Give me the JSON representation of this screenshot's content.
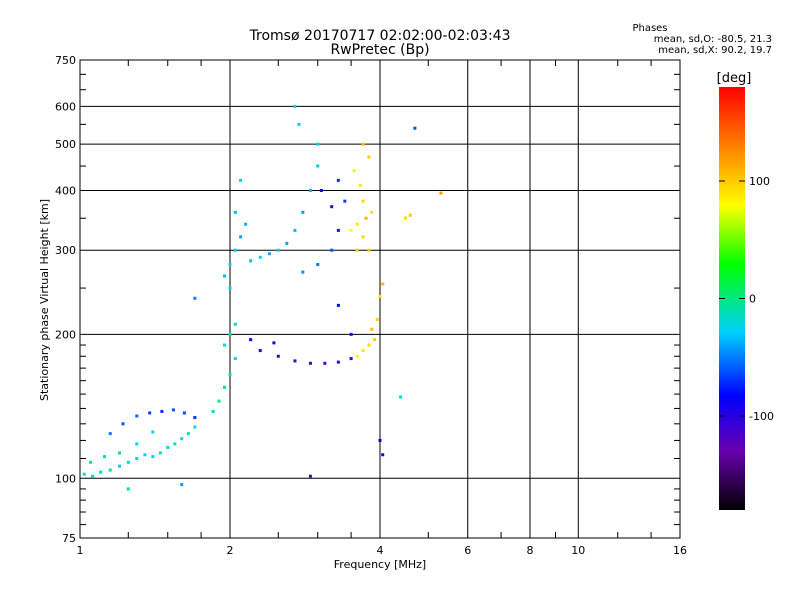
{
  "chart_data": {
    "type": "scatter",
    "title": "Tromsø 20170717 02:02:00-02:03:43",
    "subtitle": "RwPretec (Bp)",
    "xlabel": "Frequency [MHz]",
    "ylabel": "Stationary phase Virtual Height [km]",
    "x_scale": "log",
    "y_scale": "log",
    "xlim": [
      1,
      16
    ],
    "ylim": [
      75,
      750
    ],
    "x_ticks": [
      1,
      2,
      4,
      6,
      8,
      10,
      16
    ],
    "x_tick_labels": [
      "1",
      "2",
      "4",
      "6",
      "8",
      "10",
      "16"
    ],
    "y_ticks": [
      75,
      100,
      200,
      300,
      400,
      500,
      600,
      750
    ],
    "y_tick_labels": [
      "75",
      "100",
      "200",
      "300",
      "400",
      "500",
      "600",
      "750"
    ],
    "grid": true,
    "info": {
      "heading": "Phases",
      "line1": "mean, sd,O: -80.5, 21.3",
      "line2": "mean, sd,X:  90.2, 19.7"
    },
    "colorbar": {
      "label": "[deg]",
      "range": [
        -180,
        180
      ],
      "ticks": [
        100,
        0,
        -100
      ],
      "tick_labels": [
        "100",
        "0",
        "-100"
      ]
    },
    "series": [
      {
        "values": [
          [
            1.02,
            102,
            -40
          ],
          [
            1.06,
            101,
            -35
          ],
          [
            1.1,
            103,
            -38
          ],
          [
            1.15,
            104,
            -30
          ],
          [
            1.2,
            106,
            -45
          ],
          [
            1.25,
            108,
            -40
          ],
          [
            1.3,
            110,
            -35
          ],
          [
            1.35,
            112,
            -50
          ],
          [
            1.4,
            111,
            -42
          ],
          [
            1.45,
            113,
            -38
          ],
          [
            1.5,
            116,
            -45
          ],
          [
            1.55,
            118,
            -40
          ],
          [
            1.6,
            121,
            -48
          ],
          [
            1.65,
            124,
            -35
          ],
          [
            1.7,
            128,
            -42
          ],
          [
            1.15,
            124,
            -70
          ],
          [
            1.22,
            130,
            -80
          ],
          [
            1.3,
            135,
            -75
          ],
          [
            1.38,
            137,
            -85
          ],
          [
            1.46,
            138,
            -90
          ],
          [
            1.54,
            139,
            -78
          ],
          [
            1.62,
            137,
            -82
          ],
          [
            1.7,
            134,
            -88
          ],
          [
            1.05,
            108,
            -30
          ],
          [
            1.12,
            111,
            -35
          ],
          [
            1.2,
            113,
            -32
          ],
          [
            1.3,
            118,
            -40
          ],
          [
            1.4,
            125,
            -45
          ],
          [
            1.85,
            138,
            -30
          ],
          [
            1.9,
            145,
            -25
          ],
          [
            1.95,
            155,
            -35
          ],
          [
            2.0,
            165,
            -30
          ],
          [
            2.05,
            178,
            -40
          ],
          [
            1.95,
            190,
            -45
          ],
          [
            2.0,
            200,
            -42
          ],
          [
            2.05,
            210,
            -38
          ],
          [
            2.0,
            250,
            -50
          ],
          [
            1.95,
            265,
            -55
          ],
          [
            2.0,
            280,
            -48
          ],
          [
            2.05,
            300,
            -52
          ],
          [
            2.1,
            320,
            -60
          ],
          [
            2.15,
            340,
            -58
          ],
          [
            2.05,
            360,
            -55
          ],
          [
            2.1,
            420,
            -50
          ],
          [
            2.2,
            285,
            -55
          ],
          [
            2.3,
            290,
            -50
          ],
          [
            2.4,
            295,
            -58
          ],
          [
            2.5,
            300,
            -52
          ],
          [
            2.6,
            310,
            -60
          ],
          [
            2.7,
            330,
            -55
          ],
          [
            2.8,
            360,
            -62
          ],
          [
            2.9,
            400,
            -58
          ],
          [
            3.0,
            450,
            -52
          ],
          [
            3.0,
            500,
            -50
          ],
          [
            2.75,
            550,
            -48
          ],
          [
            2.7,
            600,
            -45
          ],
          [
            2.8,
            270,
            -65
          ],
          [
            3.0,
            280,
            -70
          ],
          [
            3.2,
            300,
            -80
          ],
          [
            3.3,
            330,
            -95
          ],
          [
            3.2,
            370,
            -110
          ],
          [
            3.05,
            400,
            -100
          ],
          [
            3.3,
            420,
            -90
          ],
          [
            3.4,
            380,
            -85
          ],
          [
            3.5,
            330,
            80
          ],
          [
            3.6,
            340,
            90
          ],
          [
            3.7,
            320,
            95
          ],
          [
            3.8,
            300,
            100
          ],
          [
            3.75,
            350,
            110
          ],
          [
            3.7,
            380,
            95
          ],
          [
            3.65,
            410,
            90
          ],
          [
            3.55,
            440,
            85
          ],
          [
            3.8,
            470,
            100
          ],
          [
            3.7,
            500,
            105
          ],
          [
            3.85,
            360,
            92
          ],
          [
            3.6,
            300,
            98
          ],
          [
            2.3,
            185,
            -110
          ],
          [
            2.5,
            180,
            -115
          ],
          [
            2.7,
            176,
            -120
          ],
          [
            2.9,
            174,
            -118
          ],
          [
            3.1,
            174,
            -122
          ],
          [
            3.3,
            175,
            -117
          ],
          [
            3.5,
            178,
            -112
          ],
          [
            2.45,
            192,
            -108
          ],
          [
            2.2,
            195,
            -105
          ],
          [
            3.6,
            180,
            85
          ],
          [
            3.7,
            185,
            90
          ],
          [
            3.8,
            190,
            95
          ],
          [
            3.9,
            195,
            100
          ],
          [
            3.85,
            205,
            105
          ],
          [
            3.95,
            215,
            98
          ],
          [
            4.0,
            240,
            90
          ],
          [
            4.05,
            255,
            110
          ],
          [
            3.3,
            230,
            -100
          ],
          [
            3.5,
            200,
            -95
          ],
          [
            4.0,
            120,
            -100
          ],
          [
            4.05,
            112,
            -105
          ],
          [
            4.5,
            350,
            95
          ],
          [
            4.6,
            355,
            100
          ],
          [
            5.3,
            395,
            120
          ],
          [
            4.7,
            540,
            -80
          ],
          [
            1.6,
            97,
            -60
          ],
          [
            2.9,
            101,
            -120
          ],
          [
            1.25,
            95,
            -30
          ],
          [
            4.4,
            148,
            -40
          ],
          [
            1.7,
            238,
            -70
          ]
        ]
      }
    ]
  }
}
